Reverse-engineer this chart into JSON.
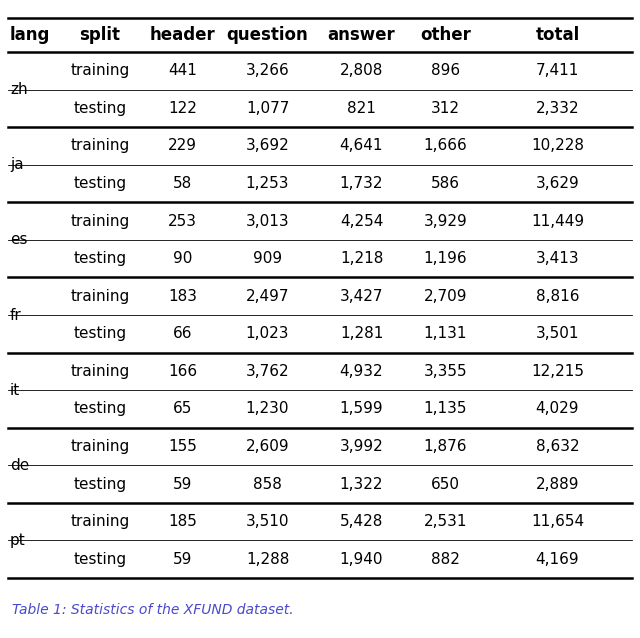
{
  "columns": [
    "lang",
    "split",
    "header",
    "question",
    "answer",
    "other",
    "total"
  ],
  "rows": [
    [
      "zh",
      "training",
      "441",
      "3,266",
      "2,808",
      "896",
      "7,411"
    ],
    [
      "zh",
      "testing",
      "122",
      "1,077",
      "821",
      "312",
      "2,332"
    ],
    [
      "ja",
      "training",
      "229",
      "3,692",
      "4,641",
      "1,666",
      "10,228"
    ],
    [
      "ja",
      "testing",
      "58",
      "1,253",
      "1,732",
      "586",
      "3,629"
    ],
    [
      "es",
      "training",
      "253",
      "3,013",
      "4,254",
      "3,929",
      "11,449"
    ],
    [
      "es",
      "testing",
      "90",
      "909",
      "1,218",
      "1,196",
      "3,413"
    ],
    [
      "fr",
      "training",
      "183",
      "2,497",
      "3,427",
      "2,709",
      "8,816"
    ],
    [
      "fr",
      "testing",
      "66",
      "1,023",
      "1,281",
      "1,131",
      "3,501"
    ],
    [
      "it",
      "training",
      "166",
      "3,762",
      "4,932",
      "3,355",
      "12,215"
    ],
    [
      "it",
      "testing",
      "65",
      "1,230",
      "1,599",
      "1,135",
      "4,029"
    ],
    [
      "de",
      "training",
      "155",
      "2,609",
      "3,992",
      "1,876",
      "8,632"
    ],
    [
      "de",
      "testing",
      "59",
      "858",
      "1,322",
      "650",
      "2,889"
    ],
    [
      "pt",
      "training",
      "185",
      "3,510",
      "5,428",
      "2,531",
      "11,654"
    ],
    [
      "pt",
      "testing",
      "59",
      "1,288",
      "1,940",
      "882",
      "4,169"
    ]
  ],
  "caption": "Table 1: Statistics of the XFUND dataset.",
  "caption_color": "#4a4acc",
  "header_fontsize": 12,
  "body_fontsize": 11,
  "caption_fontsize": 10,
  "background_color": "#ffffff",
  "thick_line_lw": 1.8,
  "thin_line_lw": 0.6,
  "group_end_rows": [
    1,
    3,
    5,
    7,
    9,
    11
  ],
  "lang_groups": [
    {
      "lang": "zh",
      "rows": [
        0,
        1
      ]
    },
    {
      "lang": "ja",
      "rows": [
        2,
        3
      ]
    },
    {
      "lang": "es",
      "rows": [
        4,
        5
      ]
    },
    {
      "lang": "fr",
      "rows": [
        6,
        7
      ]
    },
    {
      "lang": "it",
      "rows": [
        8,
        9
      ]
    },
    {
      "lang": "de",
      "rows": [
        10,
        11
      ]
    },
    {
      "lang": "pt",
      "rows": [
        12,
        13
      ]
    }
  ]
}
